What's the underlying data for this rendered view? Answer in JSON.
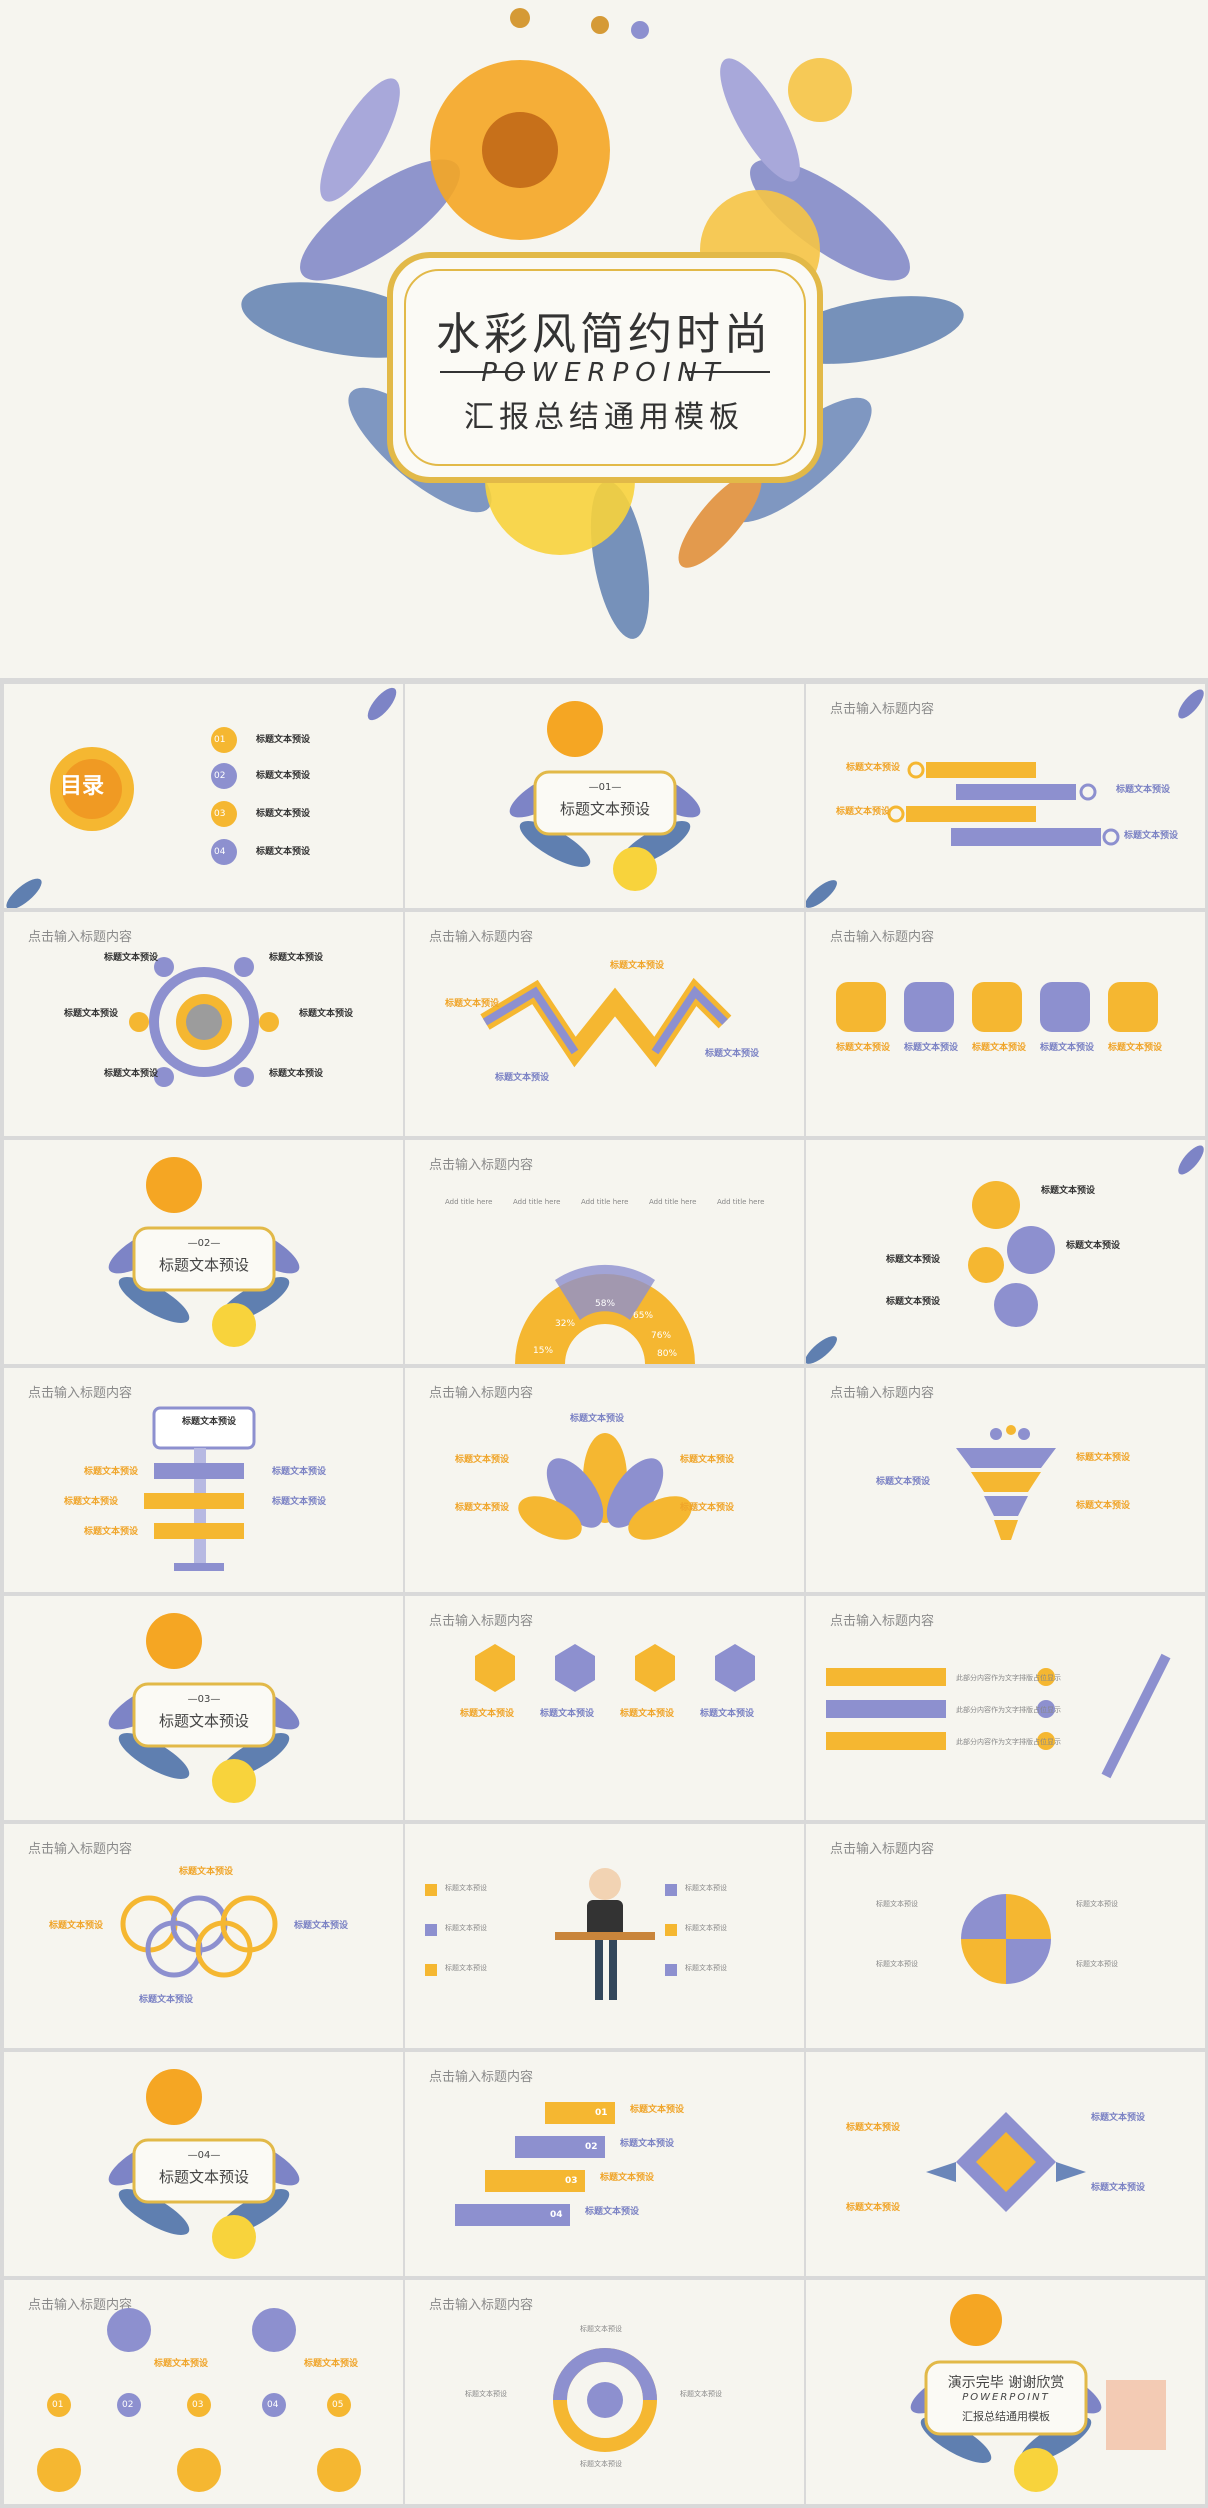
{
  "hero": {
    "title": "水彩风简约时尚",
    "subtitle_en": "POWERPOINT",
    "subtitle": "汇报总结通用模板"
  },
  "colors": {
    "yellow": "#f5b731",
    "orange": "#f09a23",
    "purple": "#8d90cf",
    "blue": "#5c79a8",
    "bg": "#f6f5ef"
  },
  "toc": {
    "title": "目录",
    "items": [
      {
        "num": "01",
        "label": "标题文本预设"
      },
      {
        "num": "02",
        "label": "标题文本预设"
      },
      {
        "num": "03",
        "label": "标题文本预设"
      },
      {
        "num": "04",
        "label": "标题文本预设"
      }
    ]
  },
  "common": {
    "header": "点击输入标题内容",
    "item_title": "标题文本预设",
    "item_desc": "此部分内容作为文字排版占位显示",
    "item_note": "(建议使用主题字体)",
    "add_title": "Add title here"
  },
  "sections": [
    {
      "num": "—01—",
      "title": "标题文本预设"
    },
    {
      "num": "—02—",
      "title": "标题文本预设"
    },
    {
      "num": "—03—",
      "title": "标题文本预设"
    },
    {
      "num": "—04—",
      "title": "标题文本预设"
    }
  ],
  "pie": {
    "labels": [
      "32%",
      "58%",
      "65%",
      "76%",
      "15%",
      "80%"
    ]
  },
  "steps": [
    "01",
    "02",
    "03",
    "04"
  ],
  "circles": [
    "01",
    "02",
    "03",
    "04",
    "05"
  ],
  "ending": {
    "title": "演示完毕 谢谢欣赏",
    "subtitle_en": "POWERPOINT",
    "subtitle": "汇报总结通用模板"
  }
}
